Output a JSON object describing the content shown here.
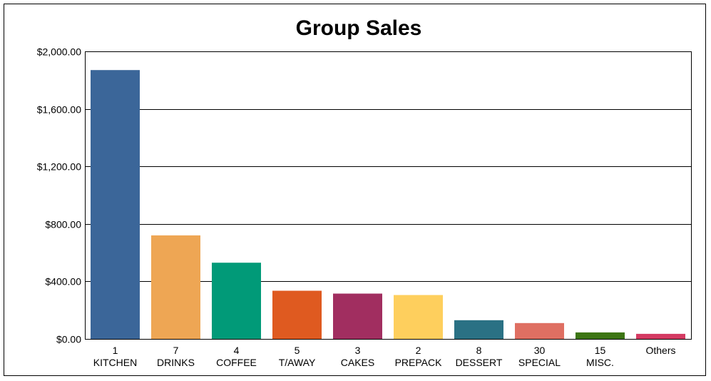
{
  "chart_data": {
    "type": "bar",
    "title": "Group Sales",
    "xlabel": "",
    "ylabel": "",
    "ylim": [
      0,
      2000
    ],
    "y_ticks": [
      0,
      400,
      800,
      1200,
      1600,
      2000
    ],
    "y_tick_labels": [
      "$0.00",
      "$400.00",
      "$800.00",
      "$1,200.00",
      "$1,600.00",
      "$2,000.00"
    ],
    "grid": true,
    "legend": "none",
    "categories": [
      {
        "code": "1",
        "name": "KITCHEN"
      },
      {
        "code": "7",
        "name": "DRINKS"
      },
      {
        "code": "4",
        "name": "COFFEE"
      },
      {
        "code": "5",
        "name": "T/AWAY"
      },
      {
        "code": "3",
        "name": "CAKES"
      },
      {
        "code": "2",
        "name": "PREPACK"
      },
      {
        "code": "8",
        "name": "DESSERT"
      },
      {
        "code": "30",
        "name": "SPECIAL"
      },
      {
        "code": "15",
        "name": "MISC."
      },
      {
        "code": "",
        "name": "Others"
      }
    ],
    "values": [
      1870,
      720,
      530,
      335,
      315,
      305,
      130,
      110,
      45,
      35
    ],
    "colors": [
      "#3b6699",
      "#eea654",
      "#019a78",
      "#df5a20",
      "#a12e60",
      "#fecf5d",
      "#2a7184",
      "#df6f62",
      "#3c7513",
      "#d43a62"
    ]
  }
}
